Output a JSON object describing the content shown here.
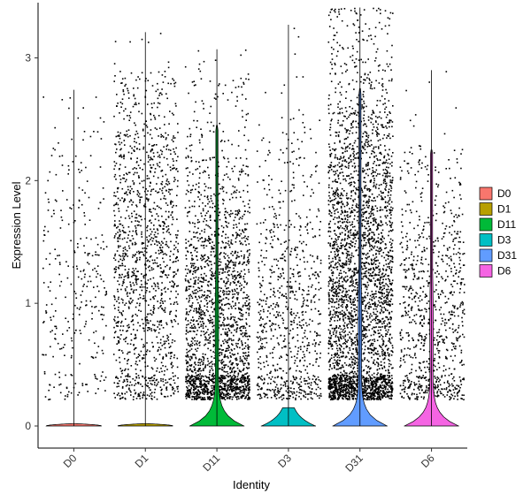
{
  "chart_data": {
    "type": "violin",
    "xlabel": "Identity",
    "ylabel": "Expression Level",
    "categories": [
      "D0",
      "D1",
      "D11",
      "D3",
      "D31",
      "D6"
    ],
    "ylim": [
      -0.18,
      3.45
    ],
    "y_ticks": [
      0,
      1,
      2,
      3
    ],
    "legend_position": "right",
    "grid": false,
    "series": [
      {
        "name": "D0",
        "color": "#F8766D",
        "max": 2.74,
        "dot_count": 300,
        "dot_max": 2.5,
        "dot_center": 1.2,
        "violin_peak_width": 0.9,
        "violin_top": 0.02
      },
      {
        "name": "D1",
        "color": "#B79F00",
        "max": 3.21,
        "dot_count": 1400,
        "dot_max": 2.9,
        "dot_center": 1.4,
        "violin_peak_width": 0.9,
        "violin_top": 0.02
      },
      {
        "name": "D11",
        "color": "#00BA38",
        "max": 3.07,
        "dot_count": 2200,
        "dot_max": 2.9,
        "dot_center": 0.8,
        "violin_peak_width": 0.9,
        "violin_top": 2.45
      },
      {
        "name": "D3",
        "color": "#00BFC4",
        "max": 3.27,
        "dot_count": 800,
        "dot_max": 2.6,
        "dot_center": 0.9,
        "violin_peak_width": 0.9,
        "violin_top": 0.15
      },
      {
        "name": "D31",
        "color": "#619CFF",
        "max": 3.41,
        "dot_count": 3500,
        "dot_max": 3.4,
        "dot_center": 1.1,
        "violin_peak_width": 0.9,
        "violin_top": 2.75
      },
      {
        "name": "D6",
        "color": "#F564E3",
        "max": 2.9,
        "dot_count": 900,
        "dot_max": 2.3,
        "dot_center": 0.9,
        "violin_peak_width": 0.9,
        "violin_top": 2.25
      }
    ]
  }
}
